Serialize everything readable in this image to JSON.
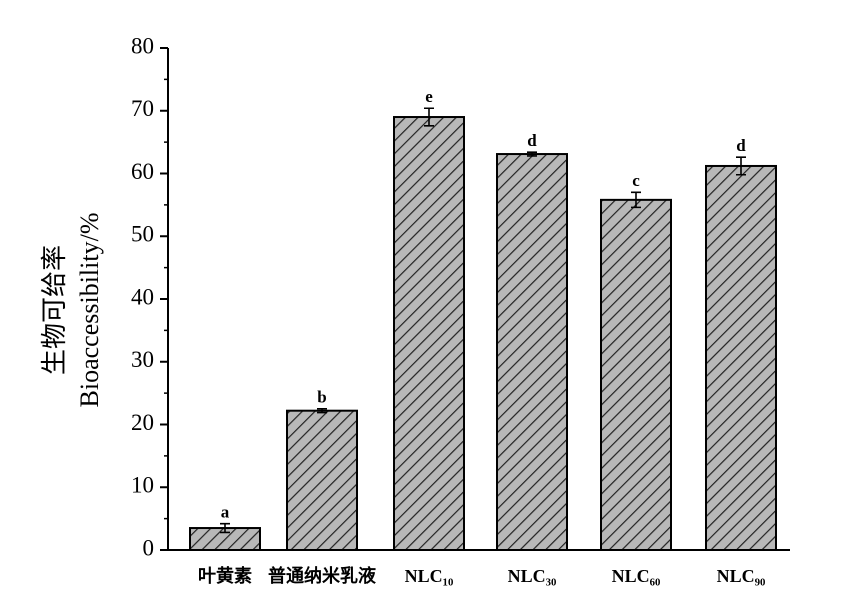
{
  "chart_data": {
    "type": "bar",
    "y_label": [
      "生物可给率",
      "Bioaccessibility/%"
    ],
    "categories": [
      "叶黄素",
      "普通纳米乳液",
      "NLC₁₀",
      "NLC₃₀",
      "NLC₆₀",
      "NLC₉₀"
    ],
    "values": [
      3.5,
      22.2,
      69,
      63.1,
      55.8,
      61.2
    ],
    "errors": [
      0.7,
      0.3,
      1.4,
      0.3,
      1.2,
      1.4
    ],
    "significance_labels": [
      "a",
      "b",
      "e",
      "d",
      "c",
      "d"
    ],
    "color": "#b8b8b8",
    "ylim": [
      0,
      80
    ],
    "yticks": [
      0,
      10,
      20,
      30,
      40,
      50,
      60,
      70,
      80
    ],
    "yminorticks": [
      5,
      15,
      25,
      35,
      45,
      55,
      65,
      75
    ]
  }
}
